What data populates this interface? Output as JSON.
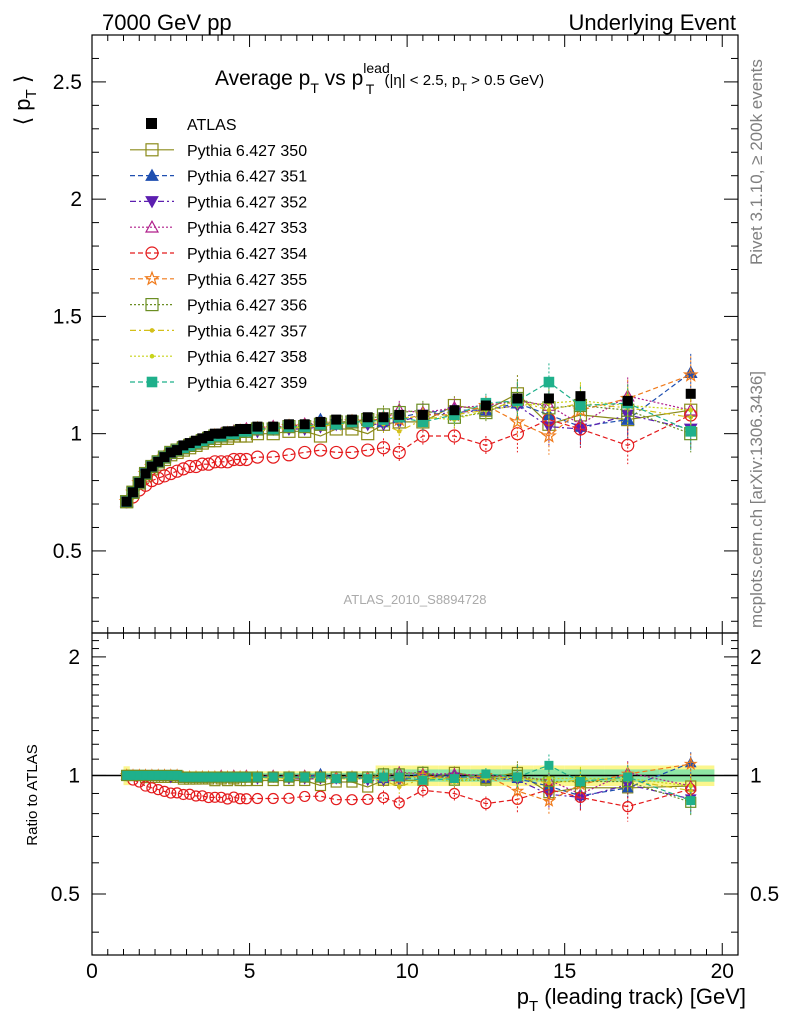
{
  "header": {
    "left": "7000 GeV pp",
    "right": "Underlying Event"
  },
  "side_labels": {
    "top": "Rivet 3.1.10, ≥ 200k events",
    "bottom": "mcplots.cern.ch [arXiv:1306.3436]"
  },
  "chart_data": [
    {
      "type": "scatter",
      "title": {
        "main": "Average p",
        "sub1": "T",
        "mid": " vs p",
        "sup2": "lead",
        "sub2": "T",
        "tail": " (|η| < 2.5, p",
        "sub3": "T",
        "end": " > 0.5 GeV)"
      },
      "ylabel": {
        "main": "⟨ p",
        "sub": "T",
        "close": " ⟩"
      },
      "watermark": "ATLAS_2010_S8894728",
      "xlim": [
        0,
        20.5
      ],
      "ylim": [
        0.15,
        2.7
      ],
      "yticks": [
        "0.5",
        "1",
        "1.5",
        "2",
        "2.5"
      ],
      "x": [
        1.1,
        1.3,
        1.5,
        1.7,
        1.9,
        2.1,
        2.3,
        2.5,
        2.7,
        2.9,
        3.1,
        3.3,
        3.5,
        3.7,
        3.9,
        4.1,
        4.3,
        4.5,
        4.7,
        4.9,
        5.25,
        5.75,
        6.25,
        6.75,
        7.25,
        7.75,
        8.25,
        8.75,
        9.25,
        9.75,
        10.5,
        11.5,
        12.5,
        13.5,
        14.5,
        15.5,
        17.0,
        19.0
      ],
      "atlas": [
        0.71,
        0.75,
        0.79,
        0.83,
        0.86,
        0.88,
        0.9,
        0.92,
        0.93,
        0.95,
        0.96,
        0.97,
        0.98,
        0.99,
        1.0,
        1.0,
        1.01,
        1.01,
        1.02,
        1.02,
        1.03,
        1.03,
        1.04,
        1.04,
        1.05,
        1.06,
        1.06,
        1.07,
        1.07,
        1.08,
        1.08,
        1.1,
        1.12,
        1.15,
        1.15,
        1.16,
        1.14,
        1.17
      ],
      "series": [
        {
          "name": "Pythia 6.427 350",
          "color": "#8b8b1a",
          "marker": "square-open",
          "dash": "",
          "values": [
            0.71,
            0.75,
            0.79,
            0.82,
            0.85,
            0.87,
            0.89,
            0.91,
            0.92,
            0.93,
            0.94,
            0.95,
            0.96,
            0.97,
            0.97,
            0.98,
            0.98,
            0.99,
            0.99,
            0.99,
            1.0,
            1.0,
            1.01,
            1.01,
            0.99,
            1.02,
            1.02,
            1.0,
            1.04,
            1.05,
            1.05,
            1.12,
            1.1,
            1.17,
            1.04,
            1.08,
            1.06,
            1.1
          ]
        },
        {
          "name": "Pythia 6.427 351",
          "color": "#1f4fb0",
          "marker": "tri-up",
          "dash": "5,3",
          "values": [
            0.71,
            0.75,
            0.79,
            0.83,
            0.86,
            0.88,
            0.9,
            0.92,
            0.93,
            0.94,
            0.95,
            0.96,
            0.97,
            0.98,
            0.99,
            0.99,
            1.0,
            1.0,
            1.01,
            1.01,
            1.02,
            1.02,
            1.03,
            1.03,
            1.06,
            1.04,
            1.05,
            1.06,
            1.05,
            1.07,
            1.09,
            1.1,
            1.1,
            1.13,
            1.08,
            1.03,
            1.06,
            1.26
          ]
        },
        {
          "name": "Pythia 6.427 352",
          "color": "#5c1fb0",
          "marker": "tri-down",
          "dash": "6,3,2,3",
          "values": [
            0.71,
            0.75,
            0.79,
            0.83,
            0.86,
            0.88,
            0.9,
            0.91,
            0.93,
            0.94,
            0.95,
            0.96,
            0.97,
            0.98,
            0.99,
            0.99,
            1.0,
            1.0,
            1.01,
            1.01,
            1.01,
            1.02,
            1.02,
            1.02,
            1.03,
            1.04,
            1.05,
            1.04,
            1.04,
            1.05,
            1.08,
            1.09,
            1.1,
            1.12,
            1.03,
            1.02,
            1.08,
            1.02
          ]
        },
        {
          "name": "Pythia 6.427 353",
          "color": "#b01f8b",
          "marker": "tri-up-open",
          "dash": "2,2",
          "values": [
            0.71,
            0.75,
            0.79,
            0.83,
            0.86,
            0.88,
            0.9,
            0.92,
            0.93,
            0.94,
            0.95,
            0.96,
            0.97,
            0.98,
            0.99,
            1.0,
            1.0,
            1.01,
            1.01,
            1.02,
            1.02,
            1.03,
            1.03,
            1.04,
            1.04,
            1.05,
            1.05,
            1.06,
            1.06,
            1.1,
            1.09,
            1.11,
            1.12,
            1.14,
            1.12,
            1.04,
            1.16,
            1.1
          ]
        },
        {
          "name": "Pythia 6.427 354",
          "color": "#e41a1c",
          "marker": "circle-open",
          "dash": "5,3",
          "values": [
            0.71,
            0.73,
            0.76,
            0.78,
            0.8,
            0.81,
            0.82,
            0.83,
            0.84,
            0.85,
            0.86,
            0.86,
            0.87,
            0.87,
            0.88,
            0.88,
            0.88,
            0.89,
            0.89,
            0.89,
            0.9,
            0.9,
            0.91,
            0.92,
            0.93,
            0.92,
            0.92,
            0.93,
            0.94,
            0.92,
            0.99,
            0.99,
            0.95,
            1.0,
            1.06,
            1.02,
            0.95,
            1.08
          ]
        },
        {
          "name": "Pythia 6.427 355",
          "color": "#f07a1a",
          "marker": "star-open",
          "dash": "5,3",
          "values": [
            0.71,
            0.75,
            0.79,
            0.83,
            0.86,
            0.88,
            0.9,
            0.92,
            0.93,
            0.94,
            0.95,
            0.96,
            0.97,
            0.98,
            0.99,
            0.99,
            1.0,
            1.0,
            1.01,
            1.01,
            1.02,
            1.02,
            1.03,
            1.03,
            1.04,
            1.04,
            1.05,
            1.05,
            1.07,
            1.06,
            1.08,
            1.08,
            1.12,
            1.05,
            0.99,
            1.1,
            1.15,
            1.25
          ]
        },
        {
          "name": "Pythia 6.427 356",
          "color": "#6b8e23",
          "marker": "square-open",
          "dash": "2,2",
          "values": [
            0.71,
            0.75,
            0.79,
            0.83,
            0.86,
            0.88,
            0.9,
            0.92,
            0.93,
            0.94,
            0.95,
            0.96,
            0.97,
            0.98,
            0.99,
            0.99,
            1.0,
            1.0,
            1.01,
            1.01,
            1.02,
            1.02,
            1.03,
            1.03,
            1.04,
            1.05,
            1.05,
            1.06,
            1.08,
            1.09,
            1.1,
            1.07,
            1.09,
            1.15,
            1.11,
            1.12,
            1.1,
            1.0
          ]
        },
        {
          "name": "Pythia 6.427 357",
          "color": "#d4c01a",
          "marker": "dot",
          "dash": "6,3,2,3",
          "values": [
            0.71,
            0.75,
            0.79,
            0.83,
            0.86,
            0.88,
            0.9,
            0.91,
            0.93,
            0.94,
            0.95,
            0.96,
            0.97,
            0.98,
            0.98,
            0.99,
            0.99,
            1.0,
            1.0,
            1.01,
            1.01,
            1.02,
            1.02,
            1.03,
            1.03,
            1.04,
            1.04,
            1.05,
            1.04,
            1.01,
            1.06,
            1.08,
            1.1,
            1.14,
            1.1,
            1.13,
            1.11,
            1.07
          ]
        },
        {
          "name": "Pythia 6.427 358",
          "color": "#c8d41a",
          "marker": "dot",
          "dash": "2,2",
          "values": [
            0.71,
            0.75,
            0.79,
            0.83,
            0.86,
            0.88,
            0.9,
            0.92,
            0.93,
            0.94,
            0.95,
            0.96,
            0.97,
            0.98,
            0.99,
            0.99,
            1.0,
            1.0,
            1.01,
            1.01,
            1.02,
            1.02,
            1.03,
            1.03,
            1.04,
            1.04,
            1.05,
            1.05,
            1.06,
            1.07,
            1.07,
            1.06,
            1.1,
            1.12,
            1.13,
            1.14,
            1.12,
            1.1
          ]
        },
        {
          "name": "Pythia 6.427 359",
          "color": "#1fb08b",
          "marker": "square",
          "dash": "5,3",
          "values": [
            0.71,
            0.75,
            0.79,
            0.83,
            0.86,
            0.88,
            0.9,
            0.92,
            0.93,
            0.94,
            0.95,
            0.96,
            0.97,
            0.98,
            0.99,
            0.99,
            1.0,
            1.0,
            1.01,
            1.01,
            1.02,
            1.02,
            1.03,
            1.03,
            1.04,
            1.04,
            1.05,
            1.05,
            1.06,
            1.07,
            1.05,
            1.08,
            1.13,
            1.14,
            1.22,
            1.12,
            1.13,
            1.01
          ]
        }
      ]
    },
    {
      "type": "scatter",
      "ylabel": "Ratio to ATLAS",
      "xlabel": {
        "main": "p",
        "sub": "T",
        "rest": " (leading track) [GeV]"
      },
      "xlim": [
        0,
        20.5
      ],
      "ylim": [
        0.35,
        2.3
      ],
      "xticks": [
        "0",
        "5",
        "10",
        "15",
        "20"
      ],
      "yticks": [
        "0.5",
        "1",
        "2"
      ]
    }
  ]
}
